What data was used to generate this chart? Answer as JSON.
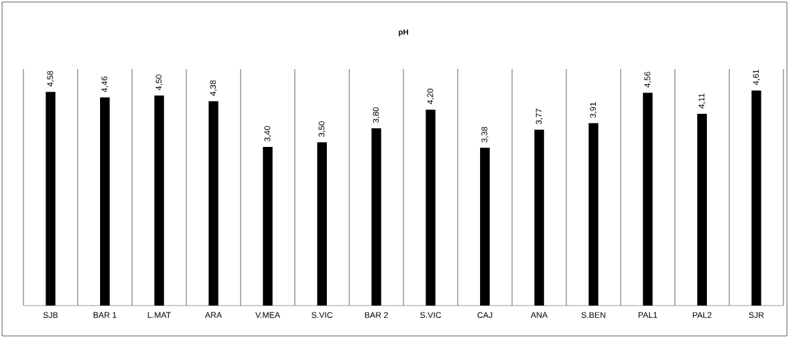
{
  "chart_data": {
    "type": "bar",
    "title": "pH",
    "categories": [
      "SJB",
      "BAR 1",
      "L.MAT",
      "ARA",
      "V.MEA",
      "S.VIC",
      "BAR 2",
      "S.VIC",
      "CAJ",
      "ANA",
      "S.BEN",
      "PAL1",
      "PAL2",
      "SJR"
    ],
    "values": [
      4.58,
      4.46,
      4.5,
      4.38,
      3.4,
      3.5,
      3.8,
      4.2,
      3.38,
      3.77,
      3.91,
      4.56,
      4.11,
      4.61
    ],
    "value_labels": [
      "4,58",
      "4,46",
      "4,50",
      "4,38",
      "3,40",
      "3,50",
      "3,80",
      "4,20",
      "3,38",
      "3,77",
      "3,91",
      "4,56",
      "4,11",
      "4,61"
    ],
    "color": "#000000",
    "grid": "x"
  }
}
